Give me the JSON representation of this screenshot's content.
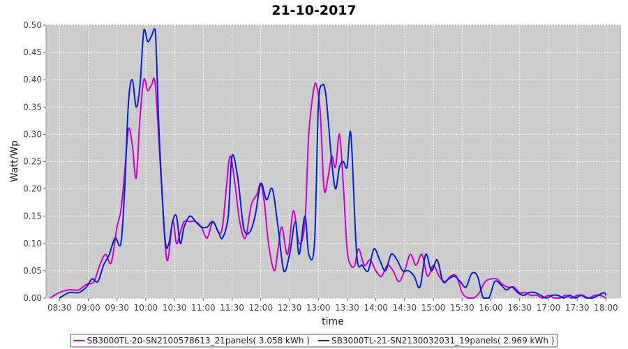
{
  "chart_data": {
    "type": "line",
    "title": "21-10-2017",
    "xlabel": "time",
    "ylabel": "Watt/Wp",
    "xlim": [
      "08:16",
      "18:15"
    ],
    "ylim": [
      0,
      0.5
    ],
    "x_ticks": [
      "08:30",
      "09:00",
      "09:30",
      "10:00",
      "10:30",
      "11:00",
      "11:30",
      "12:00",
      "12:30",
      "13:00",
      "13:30",
      "14:00",
      "14:30",
      "15:00",
      "15:30",
      "16:00",
      "16:30",
      "17:00",
      "17:30",
      "18:00"
    ],
    "y_ticks": [
      "0.00",
      "0.05",
      "0.10",
      "0.15",
      "0.20",
      "0.25",
      "0.30",
      "0.35",
      "0.40",
      "0.45",
      "0.50"
    ],
    "grid": true,
    "legend_position": "bottom",
    "series": [
      {
        "name": "SB3000TL-20-SN2100578613_21panels( 3.058 kWh )",
        "color": "#cc00cc",
        "x": [
          "08:20",
          "08:30",
          "08:40",
          "08:50",
          "08:58",
          "09:06",
          "09:12",
          "09:18",
          "09:24",
          "09:30",
          "09:34",
          "09:38",
          "09:42",
          "09:46",
          "09:50",
          "09:54",
          "09:58",
          "10:02",
          "10:06",
          "10:10",
          "10:16",
          "10:22",
          "10:28",
          "10:32",
          "10:36",
          "10:40",
          "10:46",
          "10:52",
          "10:58",
          "11:04",
          "11:10",
          "11:16",
          "11:20",
          "11:24",
          "11:28",
          "11:33",
          "11:38",
          "11:44",
          "11:50",
          "11:56",
          "12:00",
          "12:04",
          "12:08",
          "12:14",
          "12:18",
          "12:22",
          "12:28",
          "12:34",
          "12:40",
          "12:46",
          "12:50",
          "12:55",
          "12:58",
          "13:02",
          "13:06",
          "13:10",
          "13:14",
          "13:18",
          "13:22",
          "13:26",
          "13:30",
          "13:34",
          "13:38",
          "13:42",
          "13:48",
          "13:54",
          "14:00",
          "14:06",
          "14:12",
          "14:18",
          "14:24",
          "14:30",
          "14:36",
          "14:42",
          "14:48",
          "14:54",
          "15:00",
          "15:06",
          "15:12",
          "15:18",
          "15:24",
          "15:30",
          "15:36",
          "15:42",
          "15:48",
          "15:54",
          "16:00",
          "16:06",
          "16:12",
          "16:18",
          "16:24",
          "16:30",
          "16:36",
          "16:42",
          "16:48",
          "16:54",
          "17:00",
          "17:06",
          "17:12",
          "17:18",
          "17:24",
          "17:30",
          "17:36",
          "17:42",
          "17:48",
          "17:54",
          "18:00"
        ],
        "y": [
          0.0,
          0.01,
          0.015,
          0.015,
          0.025,
          0.03,
          0.06,
          0.08,
          0.065,
          0.13,
          0.16,
          0.23,
          0.31,
          0.28,
          0.22,
          0.33,
          0.4,
          0.38,
          0.39,
          0.39,
          0.22,
          0.07,
          0.14,
          0.1,
          0.12,
          0.14,
          0.14,
          0.14,
          0.13,
          0.11,
          0.14,
          0.12,
          0.13,
          0.2,
          0.26,
          0.21,
          0.14,
          0.11,
          0.17,
          0.19,
          0.21,
          0.17,
          0.1,
          0.05,
          0.09,
          0.13,
          0.08,
          0.16,
          0.1,
          0.14,
          0.3,
          0.38,
          0.39,
          0.34,
          0.2,
          0.22,
          0.26,
          0.24,
          0.3,
          0.21,
          0.09,
          0.06,
          0.06,
          0.09,
          0.06,
          0.07,
          0.05,
          0.04,
          0.06,
          0.05,
          0.03,
          0.05,
          0.08,
          0.06,
          0.08,
          0.04,
          0.06,
          0.04,
          0.03,
          0.04,
          0.04,
          0.01,
          0.0,
          0.0,
          0.01,
          0.03,
          0.035,
          0.035,
          0.025,
          0.02,
          0.02,
          0.01,
          0.01,
          0.005,
          0.005,
          0.0,
          0.005,
          0.0,
          0.0,
          0.005,
          0.0,
          0.005,
          0.005,
          0.0,
          0.005,
          0.005,
          0.0
        ]
      },
      {
        "name": "SB3000TL-21-SN2130032031_19panels( 2.969 kWh )",
        "color": "#0022cc",
        "x": [
          "08:30",
          "08:40",
          "08:50",
          "08:58",
          "09:04",
          "09:10",
          "09:16",
          "09:22",
          "09:28",
          "09:34",
          "09:38",
          "09:42",
          "09:46",
          "09:50",
          "09:54",
          "09:58",
          "10:02",
          "10:06",
          "10:10",
          "10:14",
          "10:20",
          "10:24",
          "10:28",
          "10:32",
          "10:36",
          "10:40",
          "10:46",
          "10:52",
          "10:58",
          "11:04",
          "11:10",
          "11:16",
          "11:20",
          "11:26",
          "11:30",
          "11:36",
          "11:42",
          "11:48",
          "11:54",
          "12:00",
          "12:06",
          "12:12",
          "12:18",
          "12:24",
          "12:30",
          "12:36",
          "12:40",
          "12:46",
          "12:50",
          "12:56",
          "13:00",
          "13:04",
          "13:08",
          "13:14",
          "13:18",
          "13:22",
          "13:26",
          "13:30",
          "13:34",
          "13:40",
          "13:46",
          "13:52",
          "13:58",
          "14:04",
          "14:10",
          "14:16",
          "14:22",
          "14:28",
          "14:34",
          "14:40",
          "14:46",
          "14:52",
          "14:58",
          "15:04",
          "15:10",
          "15:16",
          "15:22",
          "15:28",
          "15:34",
          "15:40",
          "15:46",
          "15:52",
          "15:58",
          "16:04",
          "16:10",
          "16:16",
          "16:22",
          "16:28",
          "16:34",
          "16:40",
          "16:46",
          "16:52",
          "16:58",
          "17:04",
          "17:10",
          "17:16",
          "17:22",
          "17:28",
          "17:34",
          "17:40",
          "17:46",
          "17:52",
          "17:58",
          "18:00"
        ],
        "y": [
          0.0,
          0.01,
          0.01,
          0.02,
          0.035,
          0.03,
          0.06,
          0.08,
          0.11,
          0.1,
          0.2,
          0.36,
          0.4,
          0.35,
          0.39,
          0.49,
          0.47,
          0.48,
          0.49,
          0.3,
          0.11,
          0.1,
          0.14,
          0.15,
          0.1,
          0.13,
          0.15,
          0.14,
          0.13,
          0.13,
          0.14,
          0.12,
          0.11,
          0.15,
          0.26,
          0.22,
          0.13,
          0.12,
          0.15,
          0.21,
          0.18,
          0.2,
          0.13,
          0.05,
          0.08,
          0.14,
          0.08,
          0.15,
          0.08,
          0.1,
          0.35,
          0.39,
          0.37,
          0.25,
          0.2,
          0.24,
          0.25,
          0.24,
          0.3,
          0.08,
          0.06,
          0.05,
          0.09,
          0.07,
          0.05,
          0.08,
          0.07,
          0.05,
          0.05,
          0.04,
          0.02,
          0.08,
          0.05,
          0.07,
          0.03,
          0.035,
          0.04,
          0.03,
          0.02,
          0.045,
          0.04,
          0.0,
          0.0,
          0.03,
          0.025,
          0.015,
          0.02,
          0.01,
          0.005,
          0.01,
          0.01,
          0.005,
          0.0,
          0.005,
          0.005,
          0.0,
          0.005,
          0.0,
          0.005,
          0.0,
          0.0,
          0.005,
          0.01,
          0.005
        ]
      }
    ]
  }
}
